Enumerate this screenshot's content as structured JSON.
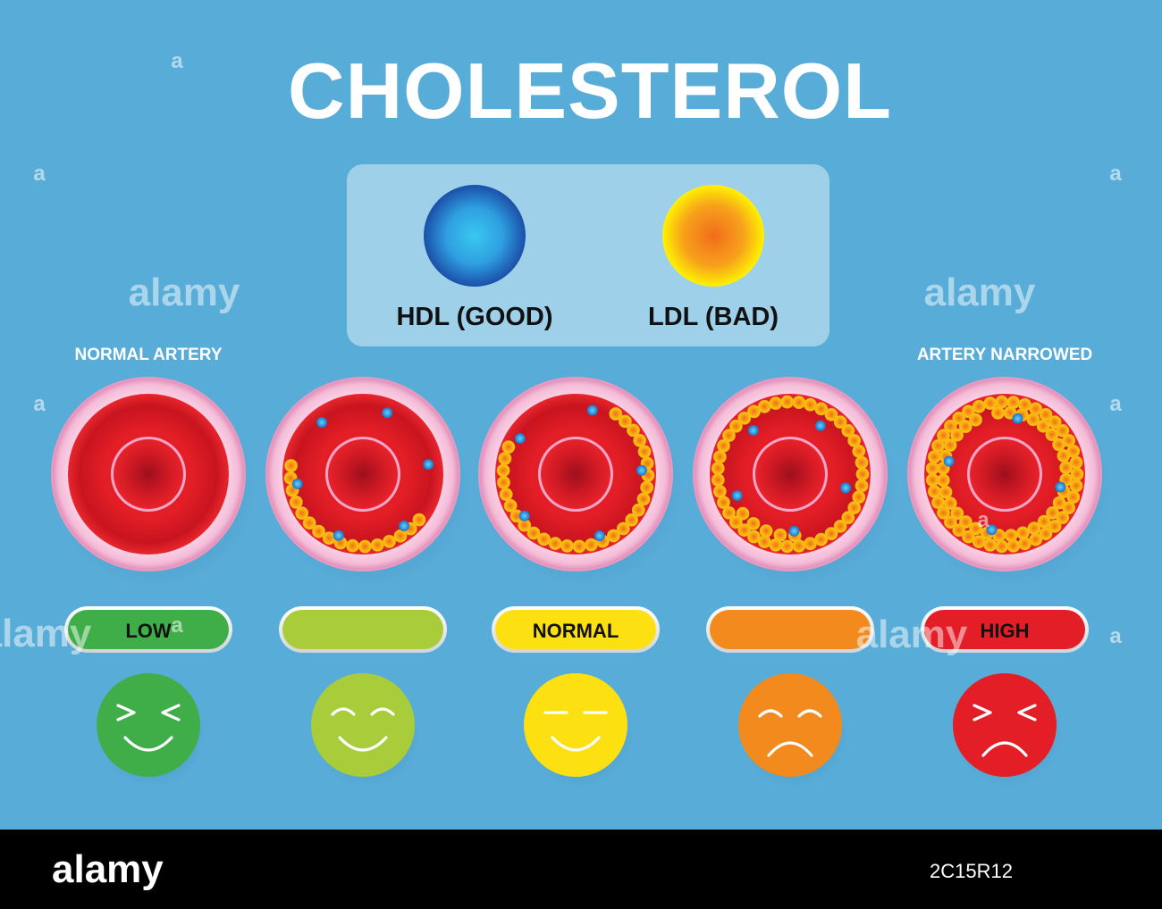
{
  "title": "CHOLESTEROL",
  "legend": {
    "hdl_label": "HDL (GOOD)",
    "ldl_label": "LDL (BAD)"
  },
  "artery_labels": {
    "left": "NORMAL ARTERY",
    "right": "ARTERY NARROWED"
  },
  "levels": [
    {
      "label": "LOW",
      "color": "#3fae49",
      "face_color": "#3fae49",
      "mood": "very-happy",
      "ldl_count": 0,
      "hdl_count": 0
    },
    {
      "label": "",
      "color": "#a9cc3a",
      "face_color": "#a9cc3a",
      "mood": "happy",
      "ldl_count": 16,
      "hdl_count": 6
    },
    {
      "label": "NORMAL",
      "color": "#fde012",
      "face_color": "#fde012",
      "mood": "content",
      "ldl_count": 28,
      "hdl_count": 5
    },
    {
      "label": "",
      "color": "#f28a1e",
      "face_color": "#f28a1e",
      "mood": "sad",
      "ldl_count": 44,
      "hdl_count": 5
    },
    {
      "label": "HIGH",
      "color": "#e31e26",
      "face_color": "#e31e26",
      "mood": "very-sad",
      "ldl_count": 70,
      "hdl_count": 4
    }
  ],
  "colors": {
    "background": "#58acd8",
    "title": "#ffffff",
    "legend_panel": "#9fd0ea",
    "hdl_center": "#38c8f2",
    "hdl_edge": "#1a4fa8",
    "ldl_center": "#f26c1c",
    "ldl_edge": "#fff200",
    "artery_wall": "#f4bcd8",
    "artery_wall_outer": "#e89ac0",
    "blood": "#e31e26",
    "blood_dark": "#9e0f1d",
    "footer_bar": "#000000"
  },
  "watermark": {
    "brand": "alamy",
    "image_id": "2C15R12",
    "mark": "a"
  }
}
